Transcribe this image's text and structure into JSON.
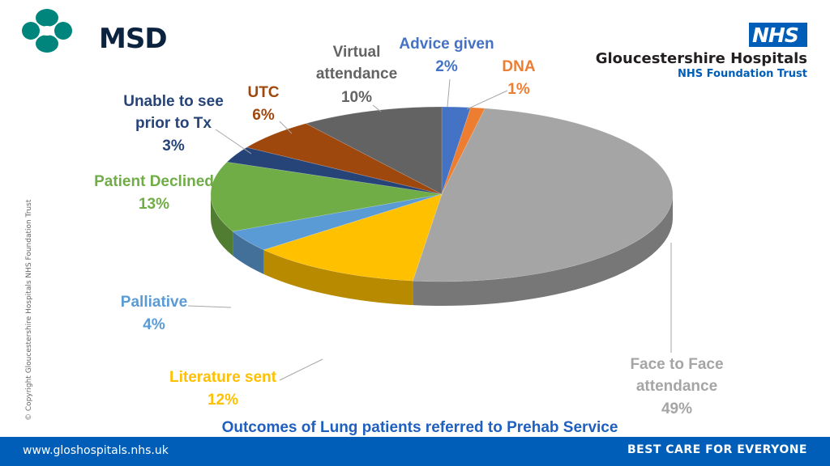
{
  "header": {
    "msd_logo_text": "MSD",
    "nhs_badge": "NHS",
    "trust_name": "Gloucestershire Hospitals",
    "trust_subtitle": "NHS Foundation Trust"
  },
  "side_text": "© Copyright Gloucestershire Hospitals NHS Foundation Trust",
  "footer": {
    "url": "www.gloshospitals.nhs.uk",
    "tagline": "BEST CARE FOR EVERYONE"
  },
  "colors": {
    "nhs_blue": "#005eb8",
    "title_blue": "#1f5fbf"
  },
  "chart_data": {
    "type": "pie",
    "title": "Outcomes of Lung patients referred to Prehab Service",
    "slices": [
      {
        "label": "Advice given",
        "value": 2,
        "display": "2%",
        "color": "#4472c4",
        "label_color": "#4472c4"
      },
      {
        "label": "DNA",
        "value": 1,
        "display": "1%",
        "color": "#ed7d31",
        "label_color": "#ed7d31"
      },
      {
        "label": "Face to Face attendance",
        "value": 49,
        "display": "49%",
        "color": "#a5a5a5",
        "label_color": "#a5a5a5"
      },
      {
        "label": "Literature sent",
        "value": 12,
        "display": "12%",
        "color": "#ffc000",
        "label_color": "#ffc000"
      },
      {
        "label": "Palliative",
        "value": 4,
        "display": "4%",
        "color": "#5b9bd5",
        "label_color": "#5b9bd5"
      },
      {
        "label": "Patient Declined",
        "value": 13,
        "display": "13%",
        "color": "#70ad47",
        "label_color": "#70ad47"
      },
      {
        "label": "Unable to see prior to Tx",
        "value": 3,
        "display": "3%",
        "color": "#264478",
        "label_color": "#264478"
      },
      {
        "label": "UTC",
        "value": 6,
        "display": "6%",
        "color": "#9e480e",
        "label_color": "#9e480e"
      },
      {
        "label": "Virtual attendance",
        "value": 10,
        "display": "10%",
        "color": "#636363",
        "label_color": "#636363"
      }
    ],
    "legend": "none",
    "style": "3d"
  }
}
